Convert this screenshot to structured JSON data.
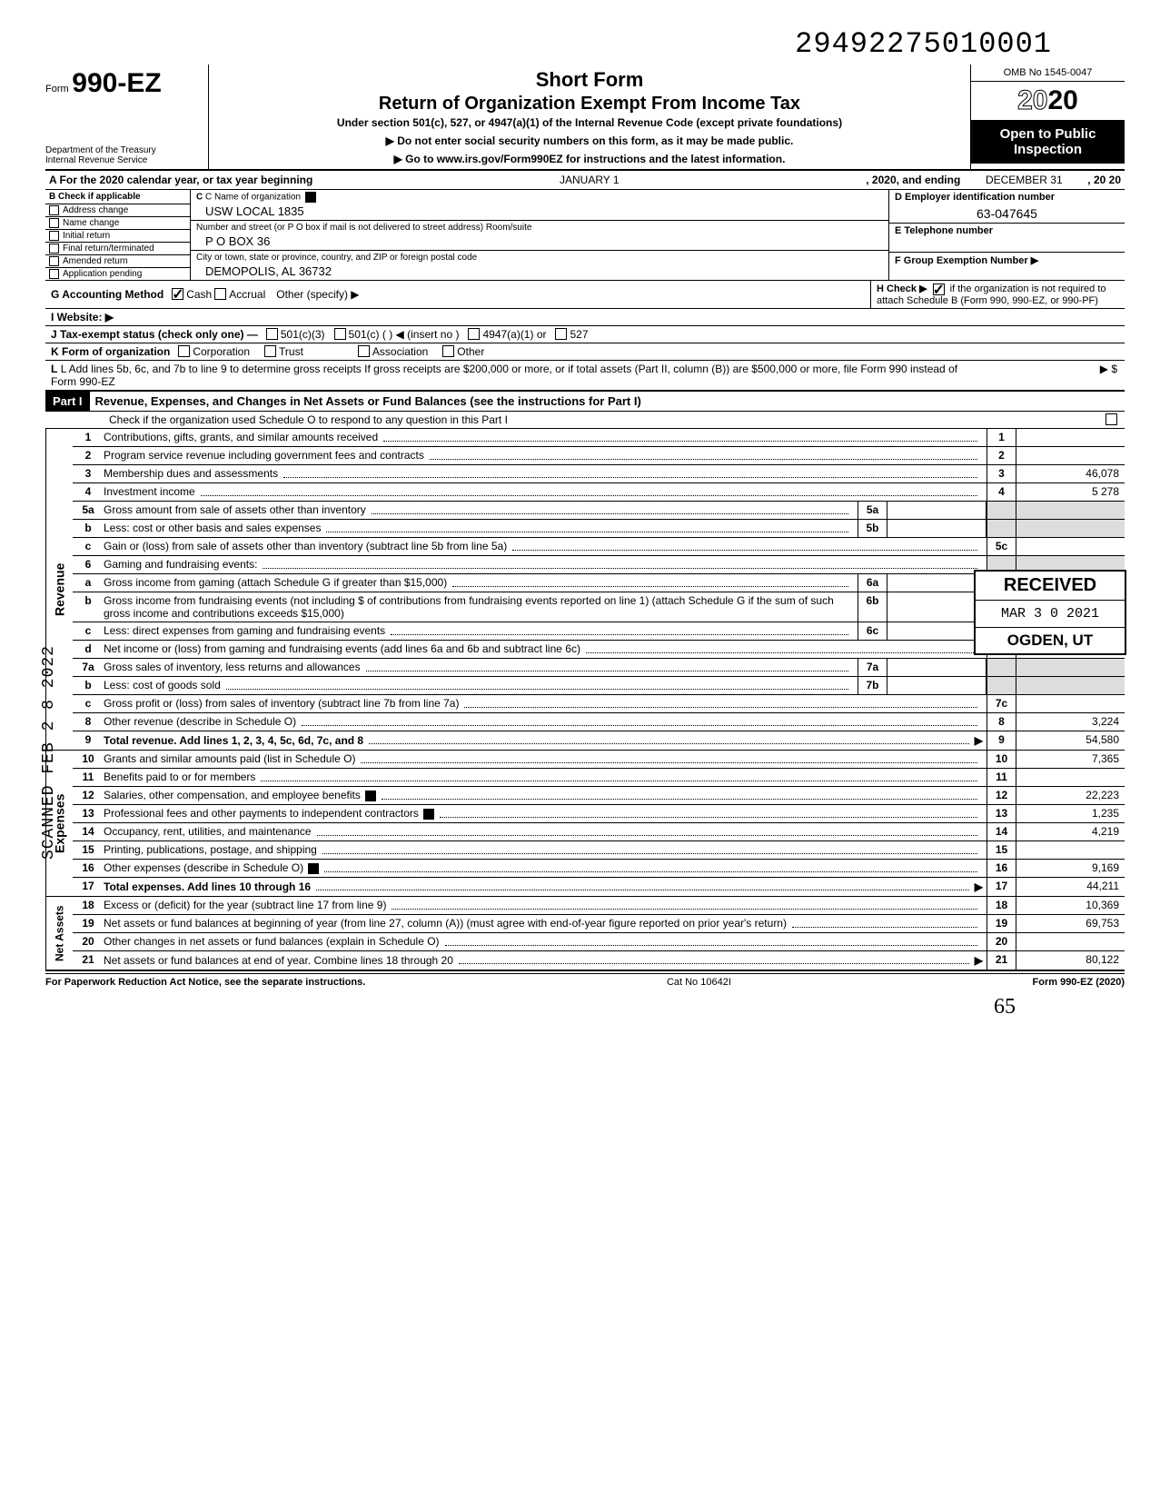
{
  "dln": "29492275010001",
  "omb": "OMB No 1545-0047",
  "form_prefix": "Form",
  "form_number": "990-EZ",
  "short_form": "Short Form",
  "return_title": "Return of Organization Exempt From Income Tax",
  "under_section": "Under section 501(c), 527, or 4947(a)(1) of the Internal Revenue Code (except private foundations)",
  "ssn_note": "▶ Do not enter social security numbers on this form, as it may be made public.",
  "goto_note": "▶ Go to www.irs.gov/Form990EZ for instructions and the latest information.",
  "dept1": "Department of the Treasury",
  "dept2": "Internal Revenue Service",
  "tax_year": "2020",
  "open_public": "Open to Public Inspection",
  "line_a_pre": "A For the 2020 calendar year, or tax year beginning",
  "line_a_begin": "JANUARY 1",
  "line_a_mid": ", 2020, and ending",
  "line_a_end": "DECEMBER 31",
  "line_a_yr": ", 20   20",
  "b_header": "B Check if applicable",
  "b_items": [
    "Address change",
    "Name change",
    "Initial return",
    "Final return/terminated",
    "Amended return",
    "Application pending"
  ],
  "c_name_lbl": "C Name of organization",
  "c_name_val": "USW LOCAL 1835",
  "c_street_lbl": "Number and street (or P O  box if mail is not delivered to street address)           Room/suite",
  "c_street_val": "P O BOX 36",
  "c_city_lbl": "City or town, state or province, country, and ZIP or foreign postal code",
  "c_city_val": "DEMOPOLIS, AL 36732",
  "d_lbl": "D Employer identification number",
  "d_val": "63-047645",
  "e_lbl": "E Telephone number",
  "f_lbl": "F Group Exemption Number ▶",
  "g_lbl": "G  Accounting Method",
  "g_cash": "Cash",
  "g_accrual": "Accrual",
  "g_other": "Other (specify) ▶",
  "h_lbl": "H Check ▶",
  "h_txt": "if the organization is not required to attach Schedule B (Form 990, 990-EZ, or 990-PF)",
  "i_lbl": "I  Website: ▶",
  "j_lbl": "J Tax-exempt status (check only one) —",
  "j_501c3": "501(c)(3)",
  "j_501c": "501(c) (          ) ◀ (insert no )",
  "j_4947": "4947(a)(1) or",
  "j_527": "527",
  "k_lbl": "K Form of organization",
  "k_corp": "Corporation",
  "k_trust": "Trust",
  "k_assoc": "Association",
  "k_other": "Other",
  "l_txt": "L Add lines 5b, 6c, and 7b to line 9 to determine gross receipts  If gross receipts are $200,000 or more, or if total assets (Part II, column (B)) are $500,000 or more, file Form 990 instead of Form 990-EZ",
  "l_arrow": "▶   $",
  "part1_lbl": "Part I",
  "part1_title": "Revenue, Expenses, and Changes in Net Assets or Fund Balances (see the instructions for Part I)",
  "part1_sub": "Check if the organization used Schedule O to respond to any question in this Part I",
  "side_rev": "Revenue",
  "side_exp": "Expenses",
  "side_na": "Net Assets",
  "received": {
    "r1": "RECEIVED",
    "r2": "MAR 3 0 2021",
    "r3": "OGDEN, UT"
  },
  "scanned": "SCANNED  FEB 2 8 2022",
  "lines": {
    "1": {
      "n": "1",
      "d": "Contributions, gifts, grants, and similar amounts received",
      "r": "1",
      "v": ""
    },
    "2": {
      "n": "2",
      "d": "Program service revenue including government fees and contracts",
      "r": "2",
      "v": ""
    },
    "3": {
      "n": "3",
      "d": "Membership dues and assessments",
      "r": "3",
      "v": "46,078"
    },
    "4": {
      "n": "4",
      "d": "Investment income",
      "r": "4",
      "v": "5 278"
    },
    "5a": {
      "n": "5a",
      "d": "Gross amount from sale of assets other than inventory",
      "mb": "5a"
    },
    "5b": {
      "n": "b",
      "d": "Less: cost or other basis and sales expenses",
      "mb": "5b"
    },
    "5c": {
      "n": "c",
      "d": "Gain or (loss) from sale of assets other than inventory (subtract line 5b from line 5a)",
      "r": "5c",
      "v": ""
    },
    "6": {
      "n": "6",
      "d": "Gaming and fundraising events:"
    },
    "6a": {
      "n": "a",
      "d": "Gross income from gaming (attach Schedule G if greater than $15,000)",
      "mb": "6a"
    },
    "6b": {
      "n": "b",
      "d": "Gross income from fundraising events (not including  $                       of contributions from fundraising events reported on line 1) (attach Schedule G if the sum of such gross income and contributions exceeds $15,000)",
      "mb": "6b"
    },
    "6c": {
      "n": "c",
      "d": "Less: direct expenses from gaming and fundraising events",
      "mb": "6c"
    },
    "6d": {
      "n": "d",
      "d": "Net income or (loss) from gaming and fundraising events (add lines 6a and 6b and subtract line 6c)",
      "r": "6d",
      "v": ""
    },
    "7a": {
      "n": "7a",
      "d": "Gross sales of inventory, less returns and allowances",
      "mb": "7a"
    },
    "7b": {
      "n": "b",
      "d": "Less: cost of goods sold",
      "mb": "7b"
    },
    "7c": {
      "n": "c",
      "d": "Gross profit or (loss) from sales of inventory (subtract line 7b from line 7a)",
      "r": "7c",
      "v": ""
    },
    "8": {
      "n": "8",
      "d": "Other revenue (describe in Schedule O)",
      "r": "8",
      "v": "3,224"
    },
    "9": {
      "n": "9",
      "d": "Total revenue. Add lines 1, 2, 3, 4, 5c, 6d, 7c, and 8",
      "r": "9",
      "v": "54,580",
      "arrow": true,
      "bold": true
    },
    "10": {
      "n": "10",
      "d": "Grants and similar amounts paid (list in Schedule O)",
      "r": "10",
      "v": "7,365"
    },
    "11": {
      "n": "11",
      "d": "Benefits paid to or for members",
      "r": "11",
      "v": ""
    },
    "12": {
      "n": "12",
      "d": "Salaries, other compensation, and employee benefits",
      "r": "12",
      "v": "22,223",
      "bb": true
    },
    "13": {
      "n": "13",
      "d": "Professional fees and other payments to independent contractors",
      "r": "13",
      "v": "1,235",
      "bb": true
    },
    "14": {
      "n": "14",
      "d": "Occupancy, rent, utilities, and maintenance",
      "r": "14",
      "v": "4,219"
    },
    "15": {
      "n": "15",
      "d": "Printing, publications, postage, and shipping",
      "r": "15",
      "v": ""
    },
    "16": {
      "n": "16",
      "d": "Other expenses (describe in Schedule O)",
      "r": "16",
      "v": "9,169",
      "bb": true
    },
    "17": {
      "n": "17",
      "d": "Total expenses. Add lines 10 through 16",
      "r": "17",
      "v": "44,211",
      "arrow": true,
      "bold": true
    },
    "18": {
      "n": "18",
      "d": "Excess or (deficit) for the year (subtract line 17 from line 9)",
      "r": "18",
      "v": "10,369"
    },
    "19": {
      "n": "19",
      "d": "Net assets or fund balances at beginning of year (from line 27, column (A)) (must agree with end-of-year figure reported on prior year's return)",
      "r": "19",
      "v": "69,753"
    },
    "20": {
      "n": "20",
      "d": "Other changes in net assets or fund balances (explain in Schedule O)",
      "r": "20",
      "v": ""
    },
    "21": {
      "n": "21",
      "d": "Net assets or fund balances at end of year. Combine lines 18 through 20",
      "r": "21",
      "v": "80,122",
      "arrow": true
    }
  },
  "footer": {
    "l": "For Paperwork Reduction Act Notice, see the separate instructions.",
    "m": "Cat No 10642I",
    "r": "Form 990-EZ (2020)"
  },
  "hand": "65"
}
